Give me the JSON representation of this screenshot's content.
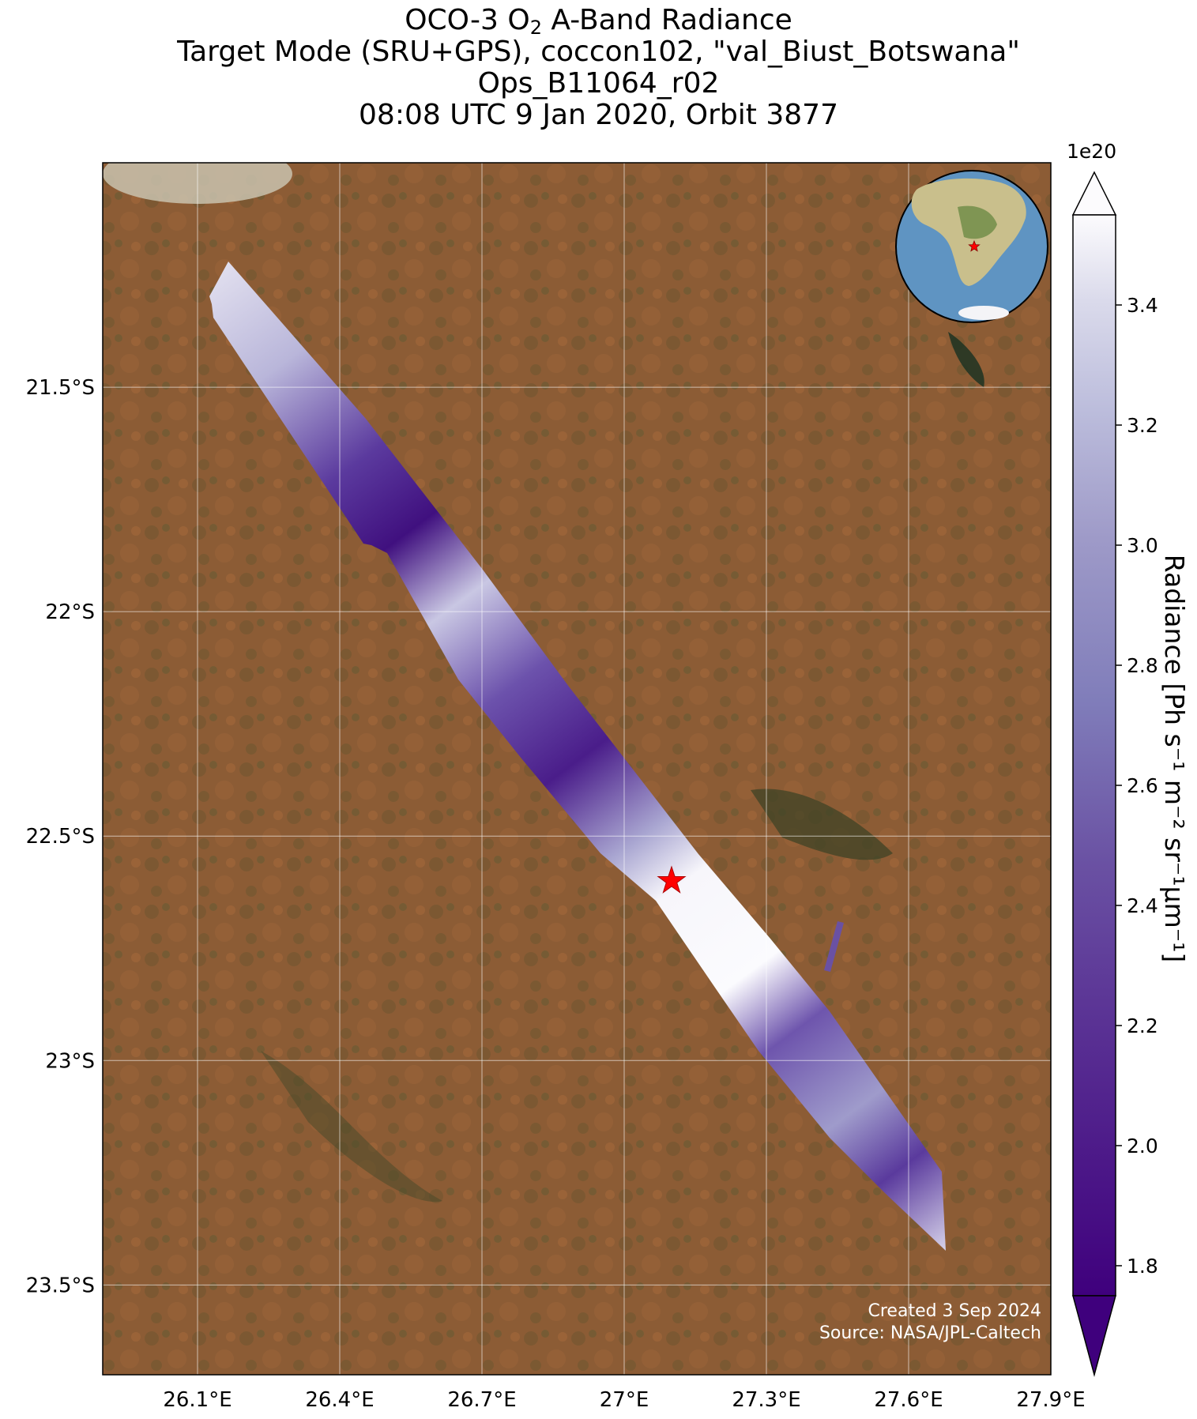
{
  "title": {
    "line1_prefix": "OCO-3 O",
    "line1_sub": "2",
    "line1_suffix": " A-Band Radiance",
    "line2": "Target Mode (SRU+GPS), coccon102, \"val_Biust_Botswana\"",
    "line3": "Ops_B11064_r02",
    "line4": "08:08 UTC 9 Jan 2020, Orbit 3877"
  },
  "map": {
    "lon_range": [
      25.9,
      27.9
    ],
    "lat_range": [
      -23.7,
      -21.0
    ],
    "lat_ticks": [
      {
        "value": -21.5,
        "label": "21.5°S"
      },
      {
        "value": -22.0,
        "label": "22°S"
      },
      {
        "value": -22.5,
        "label": "22.5°S"
      },
      {
        "value": -23.0,
        "label": "23°S"
      },
      {
        "value": -23.5,
        "label": "23.5°S"
      }
    ],
    "lon_ticks": [
      {
        "value": 26.1,
        "label": "26.1°E"
      },
      {
        "value": 26.4,
        "label": "26.4°E"
      },
      {
        "value": 26.7,
        "label": "26.7°E"
      },
      {
        "value": 27.0,
        "label": "27°E"
      },
      {
        "value": 27.3,
        "label": "27.3°E"
      },
      {
        "value": 27.6,
        "label": "27.6°E"
      },
      {
        "value": 27.9,
        "label": "27.9°E"
      }
    ],
    "target_site": {
      "lon": 27.1,
      "lat": -22.6,
      "marker": "red-star"
    },
    "background": "satellite-imagery",
    "colors": {
      "star": "#ff0000",
      "land": "#8a5a33",
      "grid": "#ffffff"
    }
  },
  "colorbar": {
    "label": "Radiance [Ph s⁻¹ m⁻² sr⁻¹μm⁻¹]",
    "multiplier": "1e20",
    "colormap": "Purples_r",
    "range": [
      1.75,
      3.55
    ],
    "extend": "both",
    "ticks": [
      "1.8",
      "2.0",
      "2.2",
      "2.4",
      "2.6",
      "2.8",
      "3.0",
      "3.2",
      "3.4"
    ]
  },
  "credits": {
    "created": "Created 3 Sep 2024",
    "source": "Source: NASA/JPL-Caltech"
  }
}
